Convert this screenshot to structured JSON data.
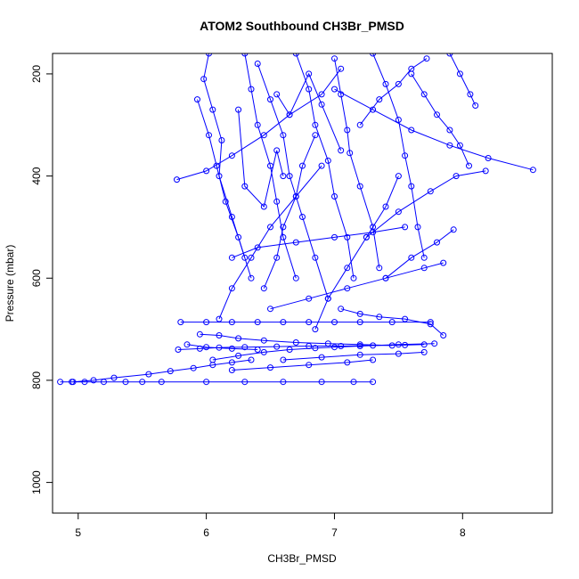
{
  "chart_data": {
    "type": "line",
    "title": "ATOM2 Southbound CH3Br_PMSD",
    "xlabel": "CH3Br_PMSD",
    "ylabel": "Pressure (mbar)",
    "xlim": [
      4.8,
      8.7
    ],
    "ylim": [
      1060,
      160
    ],
    "y_reversed": true,
    "x_ticks": [
      5,
      6,
      7,
      8
    ],
    "y_ticks": [
      200,
      400,
      600,
      800,
      1000
    ],
    "grid": false,
    "legend": "none",
    "series_color": "#0000ff",
    "series": [
      {
        "x": [
          4.86,
          4.95,
          5.05,
          5.2,
          5.37,
          5.5,
          5.65,
          6.0,
          6.3,
          6.6,
          6.9,
          7.15,
          7.3
        ],
        "y": [
          803,
          803,
          803,
          803,
          803,
          803,
          803,
          803,
          803,
          803,
          803,
          803,
          803
        ]
      },
      {
        "x": [
          4.96,
          5.12,
          5.28,
          5.55,
          5.72,
          5.9,
          6.05,
          6.2,
          6.35
        ],
        "y": [
          803,
          800,
          795,
          788,
          782,
          776,
          770,
          765,
          760
        ]
      },
      {
        "x": [
          5.78,
          5.95,
          6.1,
          6.3,
          6.55,
          6.8,
          7.05,
          7.3,
          7.55,
          7.7
        ],
        "y": [
          740,
          738,
          736,
          735,
          734,
          733,
          733,
          732,
          731,
          730
        ]
      },
      {
        "x": [
          5.8,
          6.0,
          6.2,
          6.4,
          6.6,
          6.8,
          7.0,
          7.2,
          7.45,
          7.75
        ],
        "y": [
          686,
          686,
          686,
          686,
          686,
          686,
          686,
          686,
          686,
          686
        ]
      },
      {
        "x": [
          5.95,
          6.1,
          6.25,
          6.45,
          6.7,
          6.95,
          7.2,
          7.45
        ],
        "y": [
          710,
          712,
          718,
          722,
          726,
          728,
          730,
          732
        ]
      },
      {
        "x": [
          6.05,
          6.25,
          6.45,
          6.65,
          6.85,
          7.0,
          7.2,
          7.5,
          7.78
        ],
        "y": [
          760,
          752,
          745,
          740,
          737,
          735,
          733,
          730,
          728
        ]
      },
      {
        "x": [
          5.77,
          6.0,
          6.2,
          6.45,
          6.65,
          6.9,
          7.05
        ],
        "y": [
          407,
          390,
          360,
          320,
          280,
          240,
          190
        ]
      },
      {
        "x": [
          5.93,
          6.02,
          6.08,
          6.15,
          6.25,
          6.35
        ],
        "y": [
          250,
          320,
          380,
          450,
          520,
          600
        ]
      },
      {
        "x": [
          6.02,
          5.98,
          6.05,
          6.12,
          6.1,
          6.2,
          6.3
        ],
        "y": [
          160,
          210,
          270,
          330,
          400,
          480,
          560
        ]
      },
      {
        "x": [
          6.3,
          6.35,
          6.4,
          6.5,
          6.55,
          6.6,
          6.7
        ],
        "y": [
          160,
          230,
          300,
          380,
          450,
          520,
          600
        ]
      },
      {
        "x": [
          6.4,
          6.5,
          6.6,
          6.65,
          6.75,
          6.85,
          6.95
        ],
        "y": [
          180,
          250,
          320,
          400,
          480,
          560,
          640
        ]
      },
      {
        "x": [
          6.7,
          6.8,
          6.85,
          6.95,
          7.0,
          7.1,
          7.15
        ],
        "y": [
          160,
          230,
          300,
          370,
          440,
          520,
          600
        ]
      },
      {
        "x": [
          7.0,
          7.05,
          7.1,
          7.12,
          7.2,
          7.3,
          7.35
        ],
        "y": [
          170,
          240,
          310,
          355,
          420,
          500,
          580
        ]
      },
      {
        "x": [
          7.3,
          7.4,
          7.5,
          7.55,
          7.6,
          7.65,
          7.7
        ],
        "y": [
          160,
          220,
          290,
          360,
          420,
          500,
          560
        ]
      },
      {
        "x": [
          7.6,
          7.7,
          7.8,
          7.9,
          7.98,
          8.05
        ],
        "y": [
          200,
          240,
          280,
          310,
          340,
          380
        ]
      },
      {
        "x": [
          7.0,
          7.3,
          7.6,
          7.9,
          8.2,
          8.55
        ],
        "y": [
          230,
          270,
          310,
          340,
          365,
          388
        ]
      },
      {
        "x": [
          7.25,
          7.5,
          7.75,
          7.95,
          8.18
        ],
        "y": [
          520,
          470,
          430,
          400,
          390
        ]
      },
      {
        "x": [
          7.4,
          7.6,
          7.8,
          7.93
        ],
        "y": [
          600,
          560,
          530,
          505
        ]
      },
      {
        "x": [
          7.9,
          7.98,
          8.06,
          8.1
        ],
        "y": [
          160,
          200,
          240,
          262
        ]
      },
      {
        "x": [
          6.5,
          6.8,
          7.1,
          7.4,
          7.7,
          7.85
        ],
        "y": [
          660,
          640,
          620,
          600,
          580,
          570
        ]
      },
      {
        "x": [
          6.2,
          6.4,
          6.7,
          7.0,
          7.3,
          7.55
        ],
        "y": [
          560,
          540,
          530,
          520,
          510,
          500
        ]
      },
      {
        "x": [
          6.1,
          6.2,
          6.35,
          6.5,
          6.7,
          6.9
        ],
        "y": [
          680,
          620,
          560,
          500,
          440,
          380
        ]
      },
      {
        "x": [
          6.45,
          6.55,
          6.6,
          6.7,
          6.75,
          6.85
        ],
        "y": [
          620,
          560,
          500,
          440,
          380,
          320
        ]
      },
      {
        "x": [
          6.85,
          6.95,
          7.1,
          7.25,
          7.4,
          7.5
        ],
        "y": [
          700,
          640,
          580,
          520,
          460,
          400
        ]
      },
      {
        "x": [
          6.6,
          6.9,
          7.2,
          7.5,
          7.7
        ],
        "y": [
          760,
          755,
          750,
          748,
          745
        ]
      },
      {
        "x": [
          6.2,
          6.5,
          6.8,
          7.1,
          7.3
        ],
        "y": [
          780,
          775,
          770,
          765,
          760
        ]
      },
      {
        "x": [
          7.2,
          7.35,
          7.5,
          7.6,
          7.72
        ],
        "y": [
          300,
          250,
          220,
          190,
          170
        ]
      },
      {
        "x": [
          6.55,
          6.65,
          6.8,
          6.9,
          7.05
        ],
        "y": [
          240,
          280,
          200,
          260,
          350
        ]
      },
      {
        "x": [
          6.25,
          6.3,
          6.45,
          6.55,
          6.6
        ],
        "y": [
          270,
          420,
          460,
          350,
          400
        ]
      },
      {
        "x": [
          5.85,
          6.0,
          6.2,
          6.4
        ],
        "y": [
          730,
          735,
          738,
          740
        ]
      },
      {
        "x": [
          7.05,
          7.2,
          7.35,
          7.55,
          7.75,
          7.85
        ],
        "y": [
          660,
          670,
          676,
          680,
          690,
          712
        ]
      }
    ]
  }
}
